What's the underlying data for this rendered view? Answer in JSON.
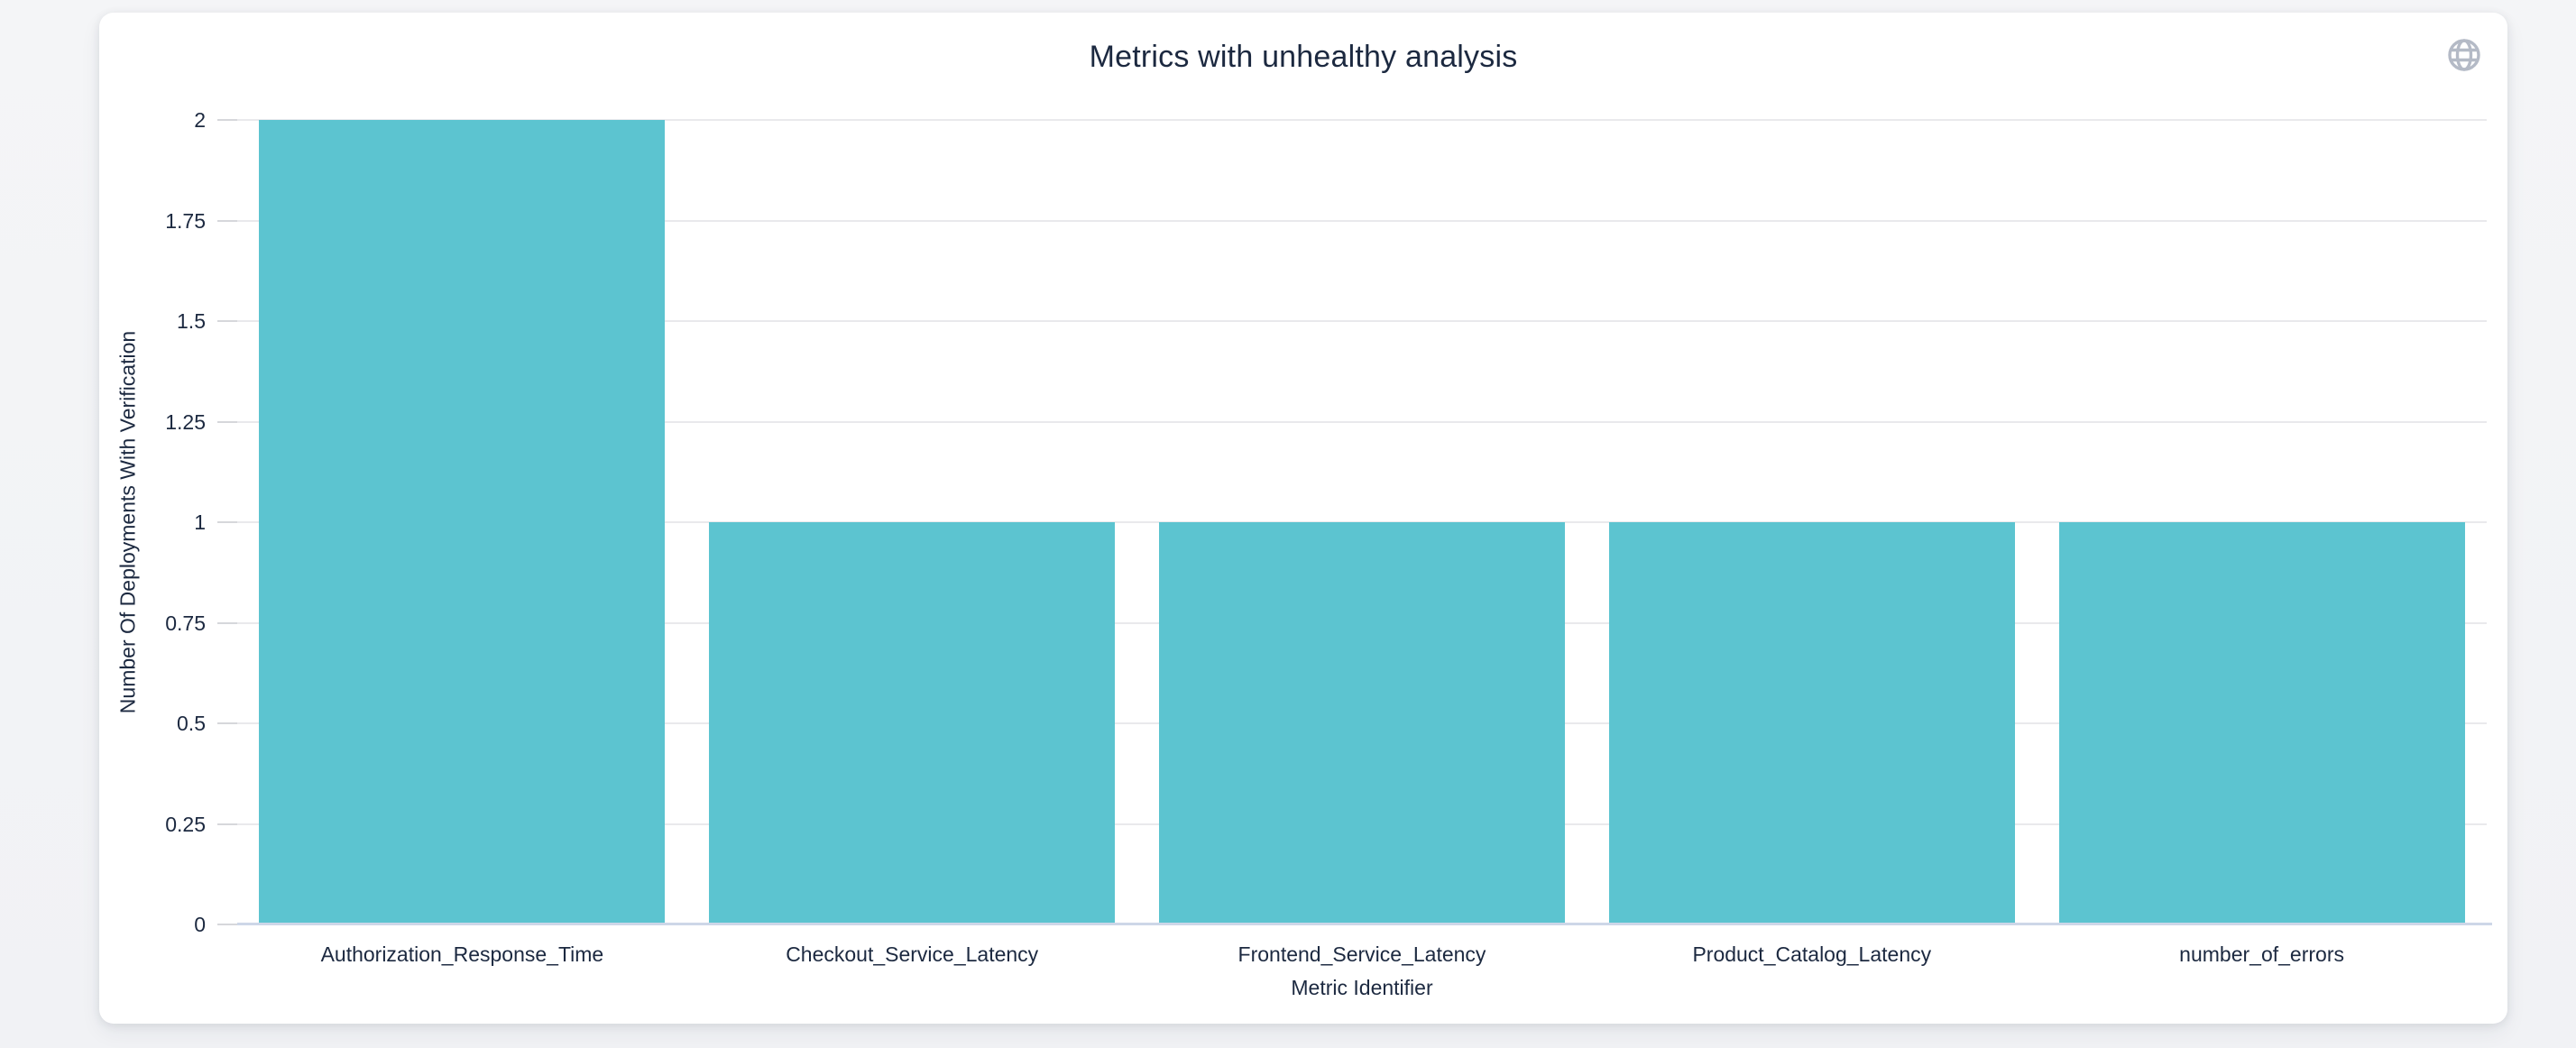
{
  "card": {
    "title": "Metrics with unhealthy analysis"
  },
  "toolbar": {
    "globe_icon": "globe"
  },
  "chart_data": {
    "type": "bar",
    "title": "Metrics with unhealthy analysis",
    "categories": [
      "Authorization_Response_Time",
      "Checkout_Service_Latency",
      "Frontend_Service_Latency",
      "Product_Catalog_Latency",
      "number_of_errors"
    ],
    "values": [
      2,
      1,
      1,
      1,
      1
    ],
    "xlabel": "Metric Identifier",
    "ylabel": "Number Of Deployments With Verification",
    "ylim": [
      0,
      2
    ],
    "yticks": [
      0,
      0.25,
      0.5,
      0.75,
      1,
      1.25,
      1.5,
      1.75,
      2
    ],
    "ytick_labels": [
      "0",
      "0.25",
      "0.5",
      "0.75",
      "1",
      "1.25",
      "1.5",
      "1.75",
      "2"
    ],
    "grid": true,
    "legend": false,
    "colors": {
      "bar": "#5cc4d0",
      "gridline": "#e9e9ec",
      "baseline": "#cdd7e8",
      "text": "#1c2940",
      "icon": "#b4bac6",
      "card_background": "#ffffff",
      "page_background": "#f3f4f6"
    }
  }
}
